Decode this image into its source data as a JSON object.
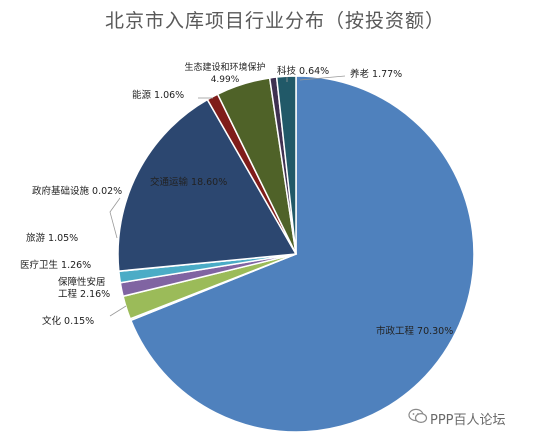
{
  "chart_data": {
    "type": "pie",
    "title": "北京市入库项目行业分布（按投资额）",
    "slices": [
      {
        "label": "市政工程",
        "value": 70.3,
        "display": "70.30%",
        "color": "#4f81bd"
      },
      {
        "label": "文化",
        "value": 0.15,
        "display": "0.15%",
        "color": "#8aa55a"
      },
      {
        "label": "保障性安居工程",
        "value": 2.16,
        "display": "2.16%",
        "color": "#9bbb59"
      },
      {
        "label": "医疗卫生",
        "value": 1.26,
        "display": "1.26%",
        "color": "#8064a2"
      },
      {
        "label": "旅游",
        "value": 1.05,
        "display": "1.05%",
        "color": "#4bacc6"
      },
      {
        "label": "政府基础设施",
        "value": 0.02,
        "display": "0.02%",
        "color": "#f79646"
      },
      {
        "label": "交通运输",
        "value": 18.6,
        "display": "18.60%",
        "color": "#2c4770"
      },
      {
        "label": "能源",
        "value": 1.06,
        "display": "1.06%",
        "color": "#7f1d1a"
      },
      {
        "label": "生态建设和环境保护",
        "value": 4.99,
        "display": "4.99%",
        "color": "#4f6228"
      },
      {
        "label": "科技",
        "value": 0.64,
        "display": "0.64%",
        "color": "#3f3151"
      },
      {
        "label": "养老",
        "value": 1.77,
        "display": "1.77%",
        "color": "#215968"
      }
    ]
  },
  "watermark": {
    "icon": "wechat-icon",
    "text": "PPP百人论坛"
  }
}
